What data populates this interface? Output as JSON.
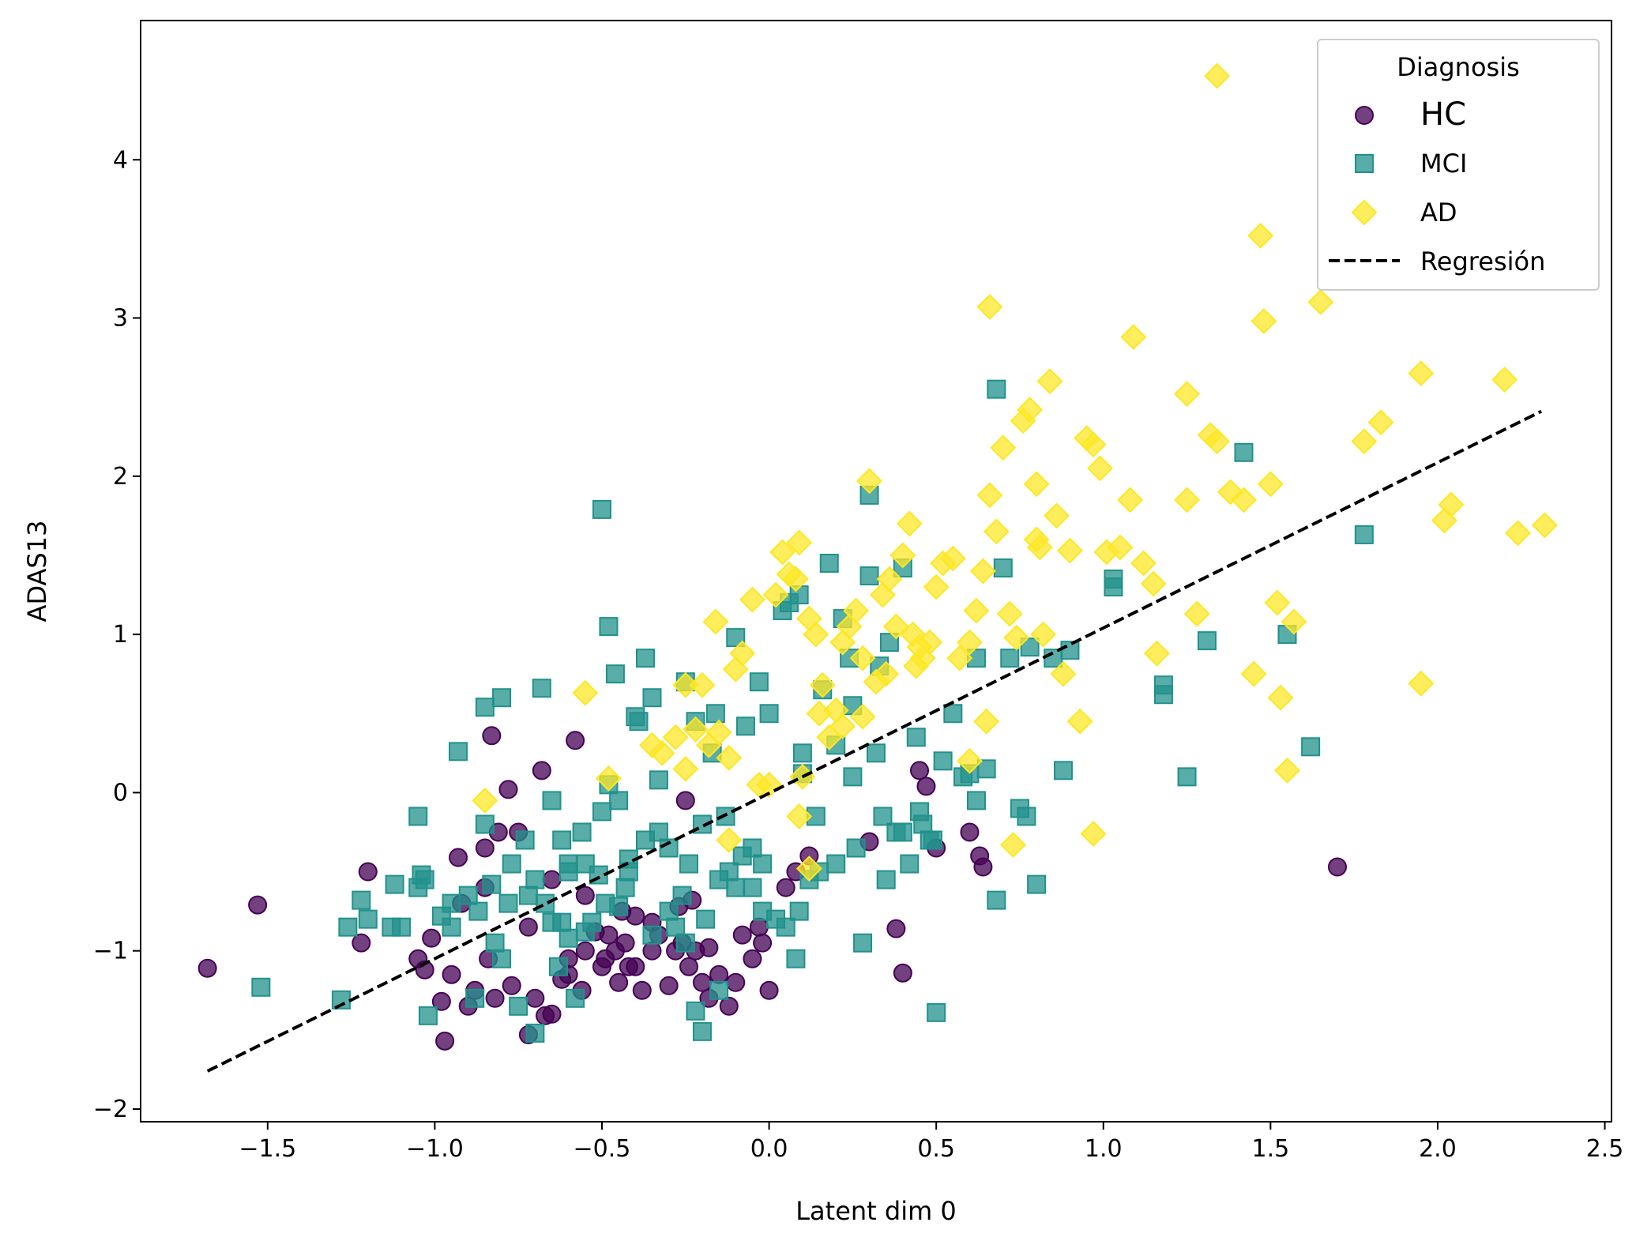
{
  "chart_data": {
    "type": "scatter",
    "title": "",
    "xlabel": "Latent dim 0",
    "ylabel": "ADAS13",
    "xlim": [
      -1.88,
      2.52
    ],
    "ylim": [
      -2.08,
      4.88
    ],
    "xticks": [
      -1.5,
      -1.0,
      -0.5,
      0.0,
      0.5,
      1.0,
      1.5,
      2.0,
      2.5
    ],
    "xtick_labels": [
      "−1.5",
      "−1.0",
      "−0.5",
      "0.0",
      "0.5",
      "1.0",
      "1.5",
      "2.0",
      "2.5"
    ],
    "yticks": [
      -2,
      -1,
      0,
      1,
      2,
      3,
      4
    ],
    "ytick_labels": [
      "−2",
      "−1",
      "0",
      "1",
      "2",
      "3",
      "4"
    ],
    "grid": false,
    "legend": {
      "title": "Diagnosis",
      "placement": "top-right",
      "entries": [
        "HC",
        "MCI",
        "AD",
        "Regresión"
      ]
    },
    "colors": {
      "HC": "#440154",
      "MCI": "#21918c",
      "AD": "#fde725",
      "regression": "#000000"
    },
    "regression": {
      "name": "Regresión",
      "style": "dashed",
      "x": [
        -1.68,
        2.31
      ],
      "y": [
        -1.76,
        2.41
      ]
    },
    "series": [
      {
        "name": "HC",
        "marker": "circle",
        "x": [
          -1.68,
          -1.53,
          -1.22,
          -1.2,
          -1.05,
          -1.03,
          -1.01,
          -0.98,
          -0.97,
          -0.95,
          -0.93,
          -0.9,
          -0.88,
          -0.85,
          -0.84,
          -0.83,
          -0.82,
          -0.81,
          -0.78,
          -0.77,
          -0.75,
          -0.72,
          -0.7,
          -0.68,
          -0.67,
          -0.65,
          -0.62,
          -0.6,
          -0.58,
          -0.56,
          -0.55,
          -0.5,
          -0.49,
          -0.48,
          -0.46,
          -0.45,
          -0.43,
          -0.42,
          -0.4,
          -0.38,
          -0.35,
          -0.33,
          -0.3,
          -0.28,
          -0.26,
          -0.25,
          -0.24,
          -0.22,
          -0.2,
          -0.18,
          -0.15,
          -0.12,
          -0.1,
          -0.08,
          -0.05,
          -0.03,
          0.0,
          0.05,
          0.08,
          0.12,
          0.3,
          0.38,
          0.4,
          0.45,
          0.47,
          0.5,
          0.6,
          0.63,
          0.64,
          1.7,
          -0.52,
          -0.27,
          -0.18,
          -0.6,
          -0.35,
          -0.55,
          -0.44,
          -0.23,
          -0.02,
          -0.65,
          -0.85,
          -0.92,
          -0.72,
          -0.4
        ],
        "y": [
          -1.11,
          -0.71,
          -0.95,
          -0.5,
          -1.05,
          -1.12,
          -0.92,
          -1.32,
          -1.57,
          -1.15,
          -0.41,
          -1.35,
          -1.25,
          -0.35,
          -1.05,
          0.36,
          -1.3,
          -0.25,
          0.02,
          -1.22,
          -0.25,
          -1.53,
          -1.3,
          0.14,
          -1.41,
          -1.4,
          -1.18,
          -1.15,
          0.33,
          -1.25,
          -1.0,
          -1.1,
          -1.05,
          -0.9,
          -1.0,
          -1.2,
          -0.95,
          -1.1,
          -0.78,
          -1.25,
          -1.0,
          -0.9,
          -1.22,
          -1.0,
          -0.95,
          -0.05,
          -1.1,
          -1.0,
          -1.2,
          -1.3,
          -1.15,
          -1.35,
          -1.2,
          -0.9,
          -1.05,
          -0.85,
          -1.25,
          -0.6,
          -0.5,
          -0.4,
          -0.31,
          -0.86,
          -1.14,
          0.14,
          0.04,
          -0.35,
          -0.25,
          -0.4,
          -0.47,
          -0.47,
          -0.88,
          -0.72,
          -0.98,
          -1.05,
          -0.82,
          -0.65,
          -0.75,
          -0.68,
          -0.95,
          -0.55,
          -0.6,
          -0.7,
          -0.85,
          -1.1
        ]
      },
      {
        "name": "MCI",
        "marker": "square",
        "x": [
          -1.52,
          -1.28,
          -1.26,
          -1.22,
          -1.2,
          -1.13,
          -1.12,
          -1.1,
          -1.05,
          -1.04,
          -1.03,
          -1.02,
          -0.98,
          -0.95,
          -0.93,
          -0.9,
          -0.88,
          -0.87,
          -0.85,
          -0.83,
          -0.82,
          -0.8,
          -0.78,
          -0.77,
          -0.75,
          -0.73,
          -0.7,
          -0.68,
          -0.67,
          -0.65,
          -0.63,
          -0.62,
          -0.6,
          -0.58,
          -0.56,
          -0.55,
          -0.53,
          -0.5,
          -0.49,
          -0.48,
          -0.46,
          -0.45,
          -0.43,
          -0.42,
          -0.4,
          -0.39,
          -0.37,
          -0.35,
          -0.33,
          -0.3,
          -0.28,
          -0.26,
          -0.25,
          -0.24,
          -0.22,
          -0.2,
          -0.19,
          -0.17,
          -0.15,
          -0.13,
          -0.1,
          -0.08,
          -0.07,
          -0.05,
          -0.03,
          -0.02,
          0.0,
          0.02,
          0.04,
          0.06,
          0.08,
          0.09,
          0.1,
          0.12,
          0.14,
          0.16,
          0.18,
          0.2,
          0.22,
          0.24,
          0.26,
          0.28,
          0.3,
          0.32,
          0.34,
          0.36,
          0.38,
          0.4,
          0.42,
          0.44,
          0.46,
          0.48,
          0.5,
          0.52,
          0.55,
          0.58,
          0.6,
          0.62,
          0.65,
          0.68,
          0.7,
          0.72,
          0.75,
          0.78,
          0.8,
          0.85,
          0.88,
          0.9,
          1.03,
          1.03,
          1.18,
          1.18,
          1.25,
          1.31,
          1.42,
          1.55,
          1.62,
          1.78,
          -0.51,
          0.68,
          0.3,
          0.09,
          -0.16,
          -0.72,
          -0.45,
          -0.6,
          -0.25,
          -0.05,
          0.15,
          0.35,
          0.25,
          0.45,
          -0.35,
          -0.55,
          -0.7,
          -0.3,
          -0.1,
          0.05,
          0.2,
          0.4,
          0.62,
          0.77,
          -0.85,
          -0.95,
          -1.05,
          -0.65,
          -0.15,
          0.49,
          -0.22,
          0.1,
          -0.48,
          -0.37,
          -0.42,
          -0.62,
          -0.02,
          0.25,
          0.33,
          -0.8,
          -0.6,
          -0.5,
          -0.33,
          -0.2,
          -0.12
        ],
        "y": [
          -1.23,
          -1.31,
          -0.85,
          -0.68,
          -0.8,
          -0.85,
          -0.58,
          -0.85,
          -0.15,
          -0.52,
          -0.55,
          -1.41,
          -0.78,
          -0.7,
          0.26,
          -0.65,
          -1.3,
          -0.75,
          0.54,
          -0.58,
          -0.95,
          0.6,
          -0.7,
          -0.45,
          -1.35,
          -0.3,
          -1.52,
          0.66,
          -0.7,
          -0.05,
          -1.1,
          -0.82,
          -0.5,
          -1.3,
          -0.25,
          -0.45,
          -0.82,
          1.79,
          -0.7,
          1.05,
          0.75,
          -0.05,
          -0.6,
          -0.42,
          0.48,
          0.45,
          -0.3,
          0.6,
          -0.25,
          -0.35,
          -0.85,
          -0.65,
          0.7,
          -0.45,
          -1.38,
          -1.51,
          -0.8,
          0.25,
          -0.55,
          -0.15,
          0.98,
          -0.4,
          0.42,
          -0.6,
          0.7,
          -0.45,
          0.5,
          -0.8,
          1.15,
          1.2,
          -1.05,
          -0.75,
          0.25,
          -0.55,
          -0.15,
          0.65,
          1.45,
          0.3,
          1.1,
          0.85,
          -0.35,
          -0.95,
          1.88,
          0.25,
          -0.15,
          0.95,
          -0.25,
          1.42,
          -0.45,
          0.35,
          -0.2,
          -0.3,
          -1.39,
          0.2,
          0.5,
          0.1,
          0.12,
          0.85,
          0.15,
          -0.68,
          1.42,
          0.85,
          -0.1,
          0.92,
          -0.58,
          0.85,
          0.14,
          0.9,
          1.35,
          1.3,
          0.62,
          0.68,
          0.1,
          0.96,
          2.15,
          1.0,
          0.29,
          1.63,
          -0.52,
          2.55,
          1.37,
          1.25,
          0.5,
          -0.65,
          -0.72,
          -0.45,
          -0.95,
          -0.35,
          -0.5,
          -0.55,
          0.1,
          -0.12,
          -0.9,
          -0.88,
          -0.55,
          -0.75,
          -0.6,
          -0.85,
          -0.45,
          -0.25,
          -0.05,
          -0.15,
          -0.2,
          -0.85,
          -0.6,
          -0.82,
          -1.25,
          -0.3,
          0.45,
          0.12,
          0.05,
          0.85,
          -0.5,
          -0.3,
          -0.75,
          0.55,
          0.8,
          -1.05,
          -0.92,
          -0.12,
          0.08,
          -0.2,
          -0.5
        ]
      },
      {
        "name": "AD",
        "marker": "diamond",
        "x": [
          -0.85,
          -0.55,
          -0.48,
          -0.35,
          -0.32,
          -0.28,
          -0.25,
          -0.22,
          -0.2,
          -0.18,
          -0.16,
          -0.15,
          -0.12,
          -0.1,
          -0.08,
          -0.05,
          -0.03,
          0.0,
          0.02,
          0.04,
          0.06,
          0.08,
          0.09,
          0.1,
          0.12,
          0.14,
          0.16,
          0.18,
          0.2,
          0.22,
          0.24,
          0.26,
          0.28,
          0.3,
          0.32,
          0.34,
          0.36,
          0.38,
          0.4,
          0.42,
          0.44,
          0.46,
          0.48,
          0.5,
          0.52,
          0.55,
          0.57,
          0.6,
          0.62,
          0.64,
          0.66,
          0.68,
          0.7,
          0.72,
          0.74,
          0.76,
          0.78,
          0.8,
          0.82,
          0.84,
          0.86,
          0.88,
          0.9,
          0.93,
          0.95,
          0.97,
          0.99,
          1.01,
          1.05,
          1.08,
          1.09,
          1.12,
          1.15,
          1.16,
          1.25,
          1.25,
          1.28,
          1.32,
          1.34,
          1.38,
          1.42,
          1.45,
          1.47,
          1.48,
          1.5,
          1.52,
          1.53,
          1.55,
          1.57,
          1.65,
          1.78,
          1.83,
          1.95,
          1.95,
          2.02,
          2.04,
          2.2,
          2.24,
          2.32,
          0.66,
          0.81,
          0.97,
          0.6,
          0.28,
          0.35,
          0.73,
          0.43,
          -0.25,
          0.15,
          0.09,
          -0.12,
          0.12,
          0.8,
          0.65,
          0.45,
          0.22
        ],
        "y": [
          -0.05,
          0.63,
          0.09,
          0.3,
          0.25,
          0.35,
          0.15,
          0.4,
          0.68,
          0.3,
          1.08,
          0.38,
          0.22,
          0.78,
          0.88,
          1.22,
          0.05,
          0.05,
          1.25,
          1.52,
          1.38,
          1.35,
          1.58,
          0.1,
          1.1,
          1.0,
          0.68,
          0.35,
          0.52,
          0.95,
          1.05,
          1.15,
          0.85,
          1.97,
          0.7,
          1.25,
          1.35,
          1.05,
          1.5,
          1.7,
          0.8,
          0.85,
          0.95,
          1.3,
          1.45,
          1.48,
          0.85,
          0.2,
          1.15,
          1.4,
          3.07,
          1.65,
          2.18,
          1.13,
          0.98,
          2.35,
          2.42,
          1.6,
          1.0,
          2.6,
          1.75,
          0.75,
          1.53,
          0.45,
          2.24,
          2.2,
          2.05,
          1.52,
          1.55,
          1.85,
          2.88,
          1.45,
          1.32,
          0.88,
          1.85,
          2.52,
          1.13,
          2.26,
          2.22,
          1.9,
          1.85,
          0.75,
          3.52,
          2.98,
          1.95,
          1.2,
          0.6,
          0.14,
          1.08,
          3.1,
          2.22,
          2.34,
          2.65,
          0.69,
          1.72,
          1.82,
          2.61,
          1.64,
          1.69,
          1.88,
          1.55,
          -0.26,
          0.95,
          0.48,
          0.75,
          -0.33,
          1.0,
          0.68,
          0.5,
          -0.15,
          -0.3,
          -0.48,
          1.95,
          0.45,
          0.92,
          0.42
        ]
      }
    ],
    "outlier_top": {
      "series": "AD",
      "x": 1.34,
      "y": 4.53
    }
  }
}
